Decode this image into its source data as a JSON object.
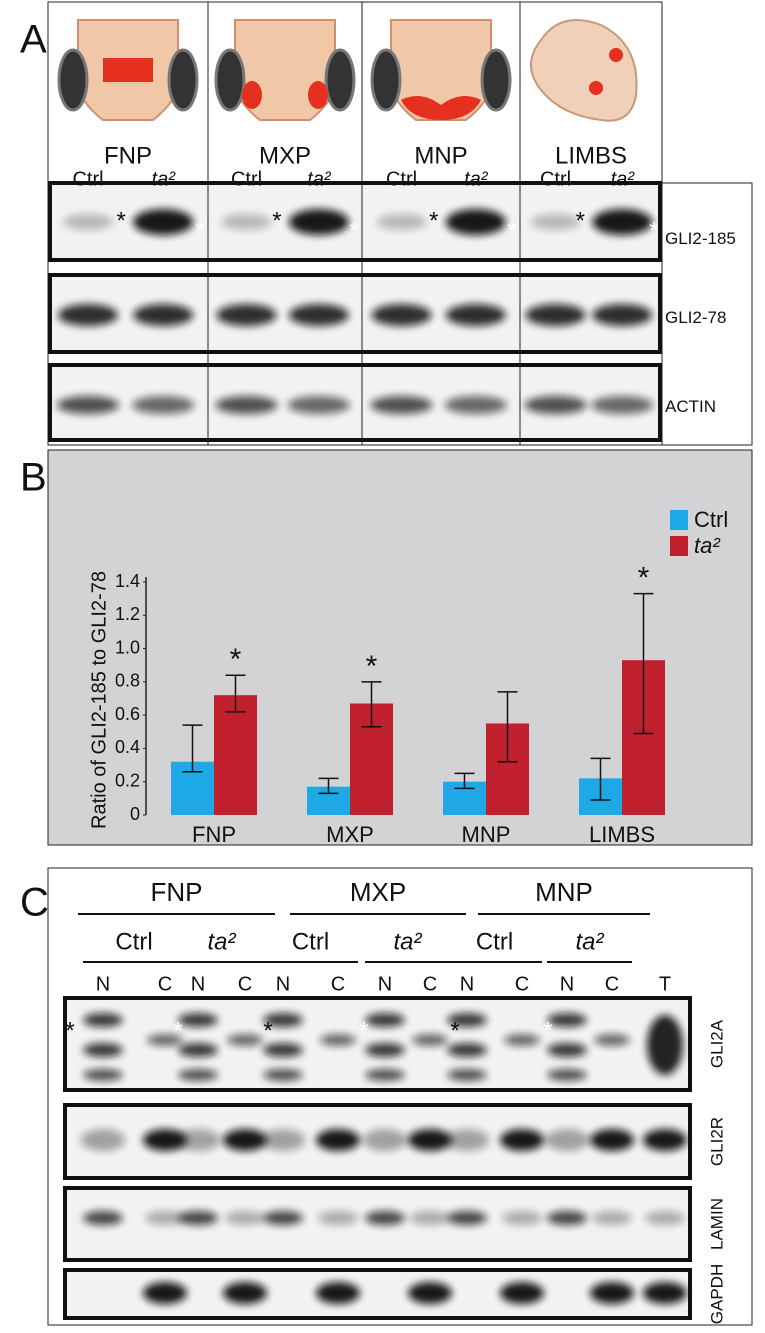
{
  "panel_a": {
    "label": "A",
    "columns": [
      {
        "name": "FNP",
        "lanes": [
          "Ctrl",
          "ta²"
        ]
      },
      {
        "name": "MXP",
        "lanes": [
          "Ctrl",
          "ta²"
        ]
      },
      {
        "name": "MNP",
        "lanes": [
          "Ctrl",
          "ta²"
        ]
      },
      {
        "name": "LIMBS",
        "lanes": [
          "Ctrl",
          "ta²"
        ]
      }
    ],
    "blots": [
      "GLI2-185",
      "GLI2-78",
      "ACTIN"
    ],
    "marker": "*"
  },
  "chart_data": {
    "type": "bar",
    "panel_label": "B",
    "y_label": "Ratio of GLI2-185 to GLI2-78",
    "categories": [
      "FNP",
      "MXP",
      "MNP",
      "LIMBS"
    ],
    "series": [
      {
        "name": "Ctrl",
        "color": "#1ea8e6",
        "values": [
          0.32,
          0.17,
          0.2,
          0.22
        ],
        "error_bars": [
          [
            0.26,
            0.54
          ],
          [
            0.13,
            0.22
          ],
          [
            0.16,
            0.25
          ],
          [
            0.09,
            0.34
          ]
        ]
      },
      {
        "name": "ta²",
        "color": "#c0202e",
        "values": [
          0.72,
          0.67,
          0.55,
          0.93
        ],
        "error_bars": [
          [
            0.62,
            0.84
          ],
          [
            0.53,
            0.8
          ],
          [
            0.32,
            0.74
          ],
          [
            0.49,
            1.33
          ]
        ],
        "annotations": [
          "*",
          "*",
          null,
          "*"
        ]
      }
    ],
    "ylim": [
      0,
      1.4
    ],
    "yticks": [
      0,
      0.2,
      0.4,
      0.6,
      0.8,
      {
        "value": 1,
        "label": "1.0"
      },
      1.2,
      1.4
    ],
    "legend": "top-right"
  },
  "panel_c": {
    "label": "C",
    "groups": [
      "FNP",
      "MXP",
      "MNP"
    ],
    "conditions": [
      "Ctrl",
      "ta²",
      "Ctrl",
      "ta²",
      "Ctrl",
      "ta²"
    ],
    "lanes": [
      "N",
      "C",
      "N",
      "C",
      "N",
      "C",
      "N",
      "C",
      "N",
      "C",
      "N",
      "C",
      "T"
    ],
    "blots": [
      "GLI2A",
      "GLI2R",
      "LAMIN",
      "GAPDH"
    ],
    "marker": "*"
  }
}
